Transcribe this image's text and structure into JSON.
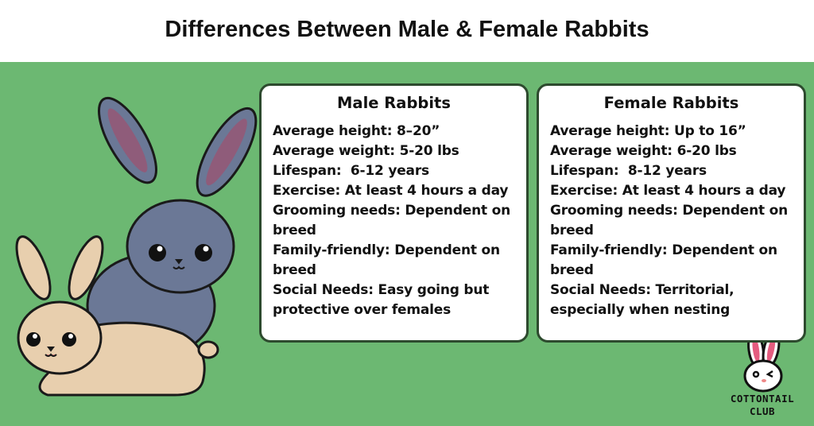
{
  "title": "Differences Between Male & Female Rabbits",
  "male": {
    "heading": "Male Rabbits",
    "lines": [
      "Average height: 8–20”",
      "Average weight: 5-20 lbs",
      "Lifespan:  6-12 years",
      "Exercise: At least 4 hours a day",
      "Grooming needs: Dependent on breed",
      "Family-friendly: Dependent on breed",
      "Social Needs: Easy going but protective over females"
    ]
  },
  "female": {
    "heading": "Female Rabbits",
    "lines": [
      "Average height: Up to 16”",
      "Average weight: 6-20 lbs",
      "Lifespan:  8-12 years",
      "Exercise: At least 4 hours a day",
      "Grooming needs: Dependent on breed",
      "Family-friendly: Dependent on breed",
      "Social Needs: Territorial, especially when nesting"
    ]
  },
  "logo": {
    "line1": "COTTONTAIL",
    "line2": "CLUB"
  },
  "colors": {
    "background": "#6cb872",
    "male_rabbit": "#6b7896",
    "female_rabbit": "#e8cfae"
  }
}
